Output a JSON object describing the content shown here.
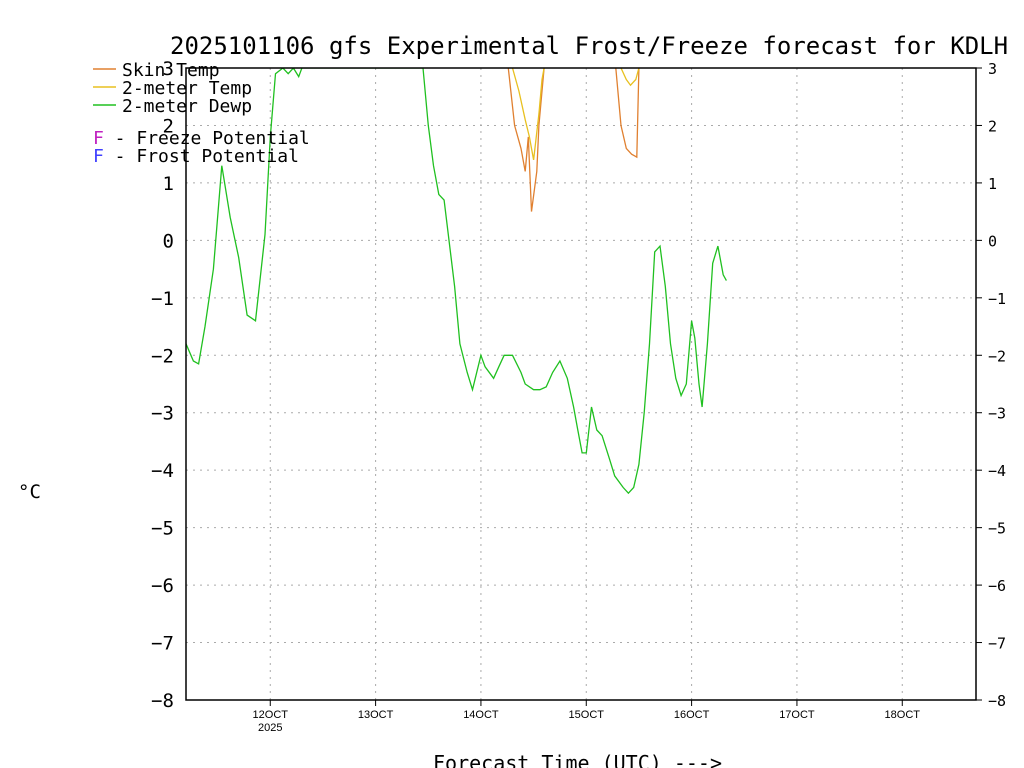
{
  "chart_data": {
    "type": "line",
    "title": "2025101106 gfs Experimental Frost/Freeze forecast for KDLH",
    "xlabel": "Forecast Time (UTC) --->",
    "ylabel": "°C",
    "ylim": [
      -8,
      3
    ],
    "xlim": [
      11.2,
      18.7
    ],
    "y_ticks": [
      -8,
      -7,
      -6,
      -5,
      -4,
      -3,
      -2,
      -1,
      0,
      1,
      2,
      3
    ],
    "x_ticks": [
      {
        "day": 12,
        "label": "12OCT",
        "sub": "2025"
      },
      {
        "day": 13,
        "label": "13OCT",
        "sub": ""
      },
      {
        "day": 14,
        "label": "14OCT",
        "sub": ""
      },
      {
        "day": 15,
        "label": "15OCT",
        "sub": ""
      },
      {
        "day": 16,
        "label": "16OCT",
        "sub": ""
      },
      {
        "day": 17,
        "label": "17OCT",
        "sub": ""
      },
      {
        "day": 18,
        "label": "18OCT",
        "sub": ""
      }
    ],
    "grid": true,
    "legend": {
      "position": "top-left",
      "entries": [
        {
          "label": "Skin Temp",
          "color": "#e08030"
        },
        {
          "label": "2-meter Temp",
          "color": "#e8c020"
        },
        {
          "label": "2-meter Dewp",
          "color": "#20c020"
        }
      ],
      "potentials": [
        {
          "letter": "F",
          "text": " - Freeze Potential",
          "color": "#c020c0"
        },
        {
          "letter": "F",
          "text": " - Frost Potential",
          "color": "#4040ff"
        }
      ]
    },
    "series": [
      {
        "name": "2-meter Dewp",
        "color": "#20c020",
        "x": [
          11.2,
          11.27,
          11.32,
          11.38,
          11.46,
          11.54,
          11.62,
          11.7,
          11.78,
          11.86,
          11.95,
          12.0,
          12.05,
          12.12,
          12.17,
          12.22,
          12.27,
          12.3,
          13.45,
          13.5,
          13.55,
          13.6,
          13.65,
          13.75,
          13.8,
          13.87,
          13.92,
          14.0,
          14.04,
          14.12,
          14.17,
          14.22,
          14.3,
          14.38,
          14.42,
          14.5,
          14.56,
          14.62,
          14.68,
          14.75,
          14.82,
          14.88,
          14.92,
          14.96,
          15.0,
          15.05,
          15.1,
          15.15,
          15.22,
          15.27,
          15.35,
          15.4,
          15.45,
          15.5,
          15.55,
          15.6,
          15.65,
          15.7,
          15.75,
          15.8,
          15.85,
          15.9,
          15.95,
          16.0,
          16.03,
          16.07,
          16.1,
          16.15,
          16.2,
          16.25,
          16.3,
          16.33
        ],
        "y": [
          -1.8,
          -2.1,
          -2.15,
          -1.5,
          -0.5,
          1.3,
          0.4,
          -0.3,
          -1.3,
          -1.4,
          0.1,
          1.8,
          2.9,
          3.0,
          2.9,
          3.0,
          2.85,
          3.0,
          3.0,
          2.0,
          1.3,
          0.8,
          0.7,
          -0.8,
          -1.8,
          -2.3,
          -2.6,
          -2.0,
          -2.2,
          -2.4,
          -2.2,
          -2.0,
          -2.0,
          -2.3,
          -2.5,
          -2.6,
          -2.6,
          -2.55,
          -2.3,
          -2.1,
          -2.4,
          -2.9,
          -3.3,
          -3.7,
          -3.7,
          -2.9,
          -3.3,
          -3.4,
          -3.8,
          -4.1,
          -4.3,
          -4.4,
          -4.3,
          -3.9,
          -3.0,
          -1.8,
          -0.2,
          -0.1,
          -0.8,
          -1.8,
          -2.4,
          -2.7,
          -2.5,
          -1.4,
          -1.7,
          -2.5,
          -2.9,
          -1.8,
          -0.4,
          -0.1,
          -0.6,
          -0.7
        ]
      },
      {
        "name": "Skin Temp",
        "color": "#e08030",
        "segments": [
          {
            "x": [
              14.26,
              14.32,
              14.38,
              14.42,
              14.45,
              14.48,
              14.53,
              14.55,
              14.6
            ],
            "y": [
              3.0,
              2.0,
              1.6,
              1.2,
              1.8,
              0.5,
              1.2,
              2.0,
              3.0
            ]
          },
          {
            "x": [
              15.28,
              15.33,
              15.38,
              15.43,
              15.48,
              15.5
            ],
            "y": [
              3.0,
              2.0,
              1.6,
              1.5,
              1.45,
              3.0
            ]
          }
        ]
      },
      {
        "name": "2-meter Temp",
        "color": "#e8c020",
        "segments": [
          {
            "x": [
              14.3,
              14.36,
              14.42,
              14.46,
              14.5,
              14.55,
              14.58,
              14.6
            ],
            "y": [
              3.0,
              2.6,
              2.1,
              1.8,
              1.4,
              2.2,
              2.8,
              3.0
            ]
          },
          {
            "x": [
              15.33,
              15.38,
              15.42,
              15.47,
              15.5
            ],
            "y": [
              3.0,
              2.8,
              2.7,
              2.8,
              3.0
            ]
          }
        ]
      }
    ]
  }
}
